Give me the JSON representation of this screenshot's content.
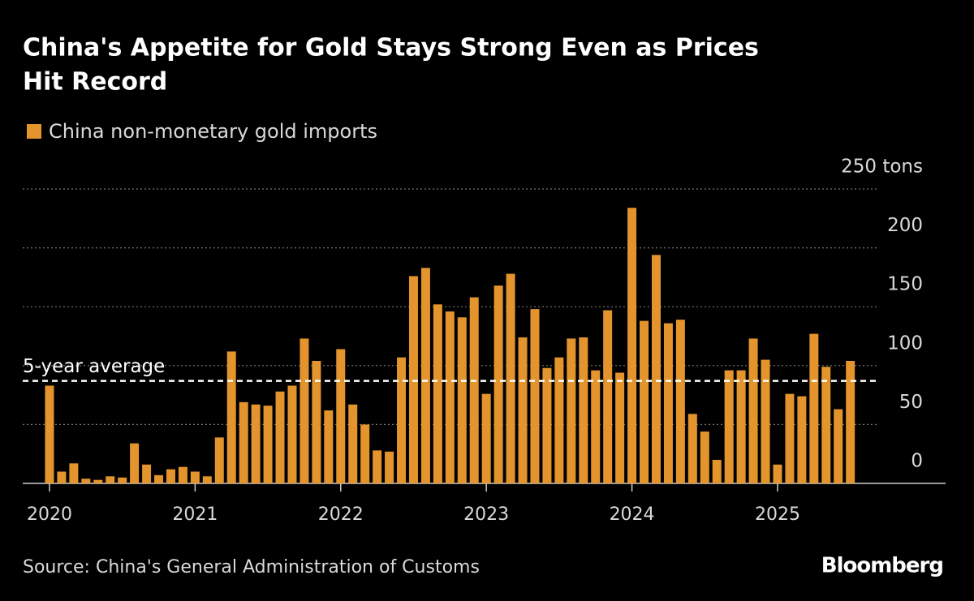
{
  "chart_data": {
    "type": "bar",
    "title": "China's Appetite for Gold Stays Strong Even as Prices Hit Record",
    "source": "Source: China's General Administration of Customs",
    "brand": "Bloomberg",
    "categories": [
      "2020",
      null,
      null,
      null,
      null,
      null,
      null,
      null,
      null,
      null,
      null,
      null,
      "2021",
      null,
      null,
      null,
      null,
      null,
      null,
      null,
      null,
      null,
      null,
      null,
      "2022",
      null,
      null,
      null,
      null,
      null,
      null,
      null,
      null,
      null,
      null,
      null,
      "2023",
      null,
      null,
      null,
      null,
      null,
      null,
      null,
      null,
      null,
      null,
      null,
      "2024",
      null,
      null,
      null,
      null,
      null,
      null,
      null,
      null,
      null,
      null,
      null,
      "2025",
      null,
      null,
      null,
      null,
      null,
      null
    ],
    "series": [
      {
        "name": "China non-monetary gold imports",
        "color": "#e3942c",
        "values": [
          83,
          10,
          17,
          4,
          3,
          6,
          5,
          34,
          16,
          7,
          12,
          14,
          10,
          6,
          39,
          112,
          69,
          67,
          66,
          78,
          83,
          123,
          104,
          62,
          114,
          67,
          50,
          28,
          27,
          107,
          176,
          183,
          152,
          146,
          141,
          158,
          76,
          168,
          178,
          124,
          148,
          98,
          107,
          123,
          124,
          96,
          147,
          94,
          234,
          138,
          194,
          136,
          139,
          59,
          44,
          20,
          96,
          96,
          123,
          105,
          16,
          76,
          74,
          127,
          99,
          63,
          104
        ]
      }
    ],
    "annotations": [
      {
        "text": "5-year average",
        "value": 87
      }
    ],
    "ylim": [
      0,
      250
    ],
    "yticks": [
      0,
      50,
      100,
      150,
      200,
      {
        "value": 250,
        "label": "250 tons"
      }
    ],
    "grid": true
  }
}
